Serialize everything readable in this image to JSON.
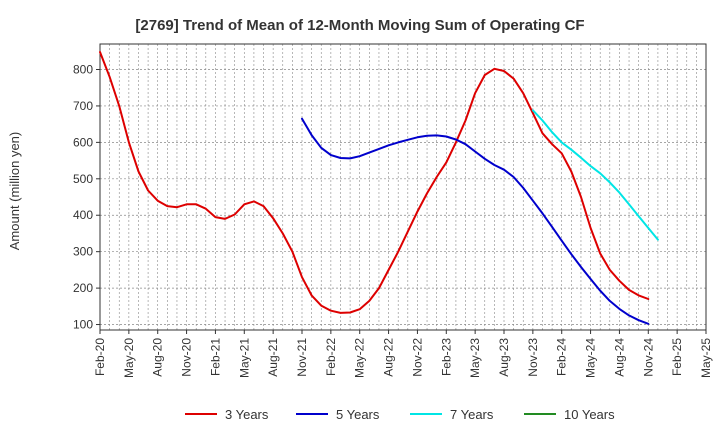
{
  "chart_data": {
    "type": "line",
    "title": "[2769]  Trend of Mean of 12-Month Moving Sum of Operating CF",
    "ylabel": "Amount (million yen)",
    "xlabel": "",
    "ylim": [
      85,
      870
    ],
    "yticks": [
      100,
      200,
      300,
      400,
      500,
      600,
      700,
      800
    ],
    "x_tick_labels": [
      "Feb-20",
      "May-20",
      "Aug-20",
      "Nov-20",
      "Feb-21",
      "May-21",
      "Aug-21",
      "Nov-21",
      "Feb-22",
      "May-22",
      "Aug-22",
      "Nov-22",
      "Feb-23",
      "May-23",
      "Aug-23",
      "Nov-23",
      "Feb-24",
      "May-24",
      "Aug-24",
      "Nov-24",
      "Feb-25",
      "May-25"
    ],
    "x_start": "Feb-20",
    "x_end": "May-25",
    "grid": true,
    "legend_position": "bottom",
    "series": [
      {
        "name": "3 Years",
        "color": "#dd0000",
        "start_index": 0,
        "values": [
          848,
          780,
          700,
          600,
          520,
          468,
          440,
          425,
          422,
          430,
          430,
          418,
          395,
          390,
          402,
          430,
          438,
          425,
          392,
          350,
          300,
          230,
          180,
          152,
          138,
          132,
          133,
          142,
          165,
          200,
          250,
          300,
          355,
          410,
          460,
          505,
          545,
          600,
          660,
          735,
          785,
          802,
          796,
          775,
          735,
          680,
          625,
          595,
          570,
          520,
          450,
          365,
          295,
          250,
          220,
          195,
          180,
          170
        ]
      },
      {
        "name": "5 Years",
        "color": "#0000cc",
        "start_index": 21,
        "values": [
          665,
          620,
          585,
          565,
          557,
          556,
          562,
          572,
          582,
          592,
          600,
          607,
          614,
          618,
          619,
          616,
          608,
          595,
          575,
          555,
          538,
          525,
          505,
          475,
          440,
          405,
          368,
          330,
          293,
          258,
          225,
          193,
          165,
          143,
          125,
          112,
          102
        ]
      },
      {
        "name": "7 Years",
        "color": "#00e5e5",
        "start_index": 45,
        "values": [
          688,
          660,
          628,
          600,
          580,
          558,
          535,
          515,
          490,
          462,
          430,
          397,
          365,
          333
        ]
      },
      {
        "name": "10 Years",
        "color": "#228b22",
        "start_index": 0,
        "values": []
      }
    ]
  }
}
